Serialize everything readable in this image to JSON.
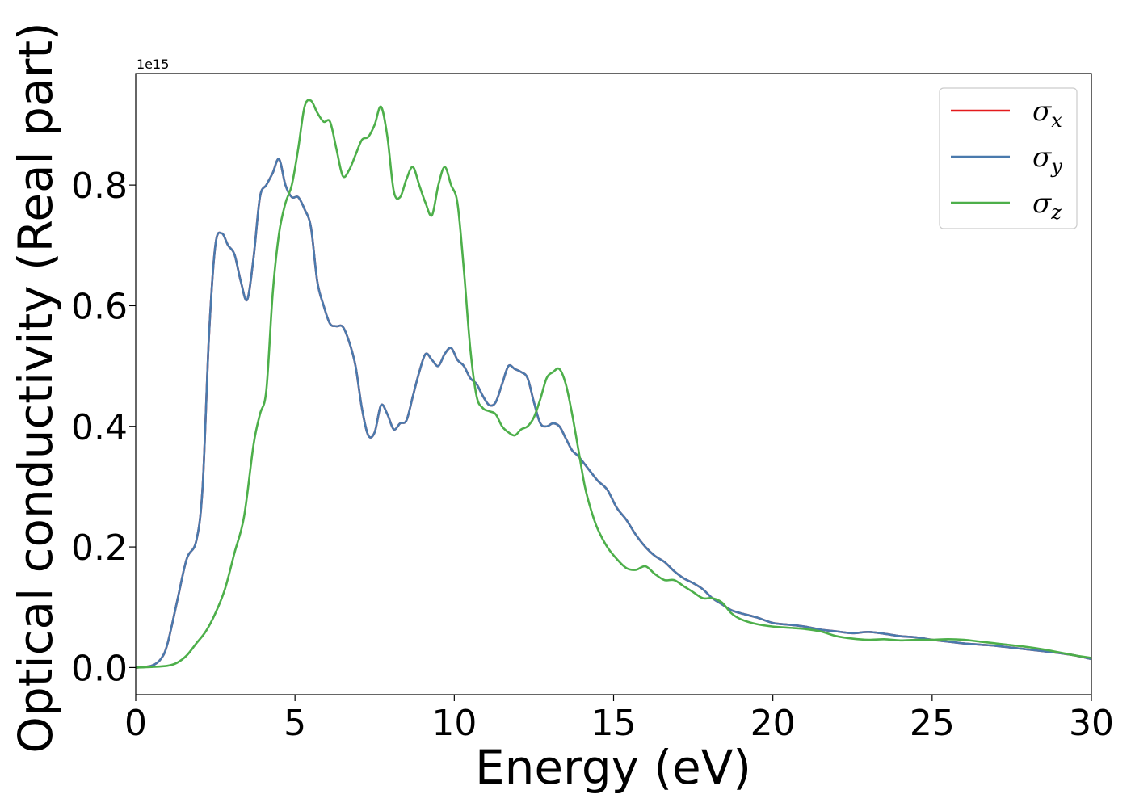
{
  "chart_data": {
    "type": "line",
    "xlabel": "Energy (eV)",
    "ylabel": "Optical conductivity (Real part)",
    "y_offset_label": "1e15",
    "xlim": [
      0,
      30
    ],
    "ylim": [
      -0.045,
      0.985
    ],
    "x_ticks": [
      0,
      5,
      10,
      15,
      20,
      25,
      30
    ],
    "x_tick_labels": [
      "0",
      "5",
      "10",
      "15",
      "20",
      "25",
      "30"
    ],
    "y_ticks": [
      0.0,
      0.2,
      0.4,
      0.6,
      0.8
    ],
    "y_tick_labels": [
      "0.0",
      "0.2",
      "0.4",
      "0.6",
      "0.8"
    ],
    "legend_position": "top-right",
    "grid": false,
    "series": [
      {
        "name": "σx",
        "symbol": "σ",
        "sub": "x",
        "color": "#e41a1c",
        "x": [
          0,
          0.5,
          0.8,
          1.0,
          1.3,
          1.6,
          1.9,
          2.1,
          2.3,
          2.5,
          2.7,
          2.9,
          3.1,
          3.3,
          3.5,
          3.7,
          3.9,
          4.1,
          4.3,
          4.5,
          4.7,
          4.9,
          5.1,
          5.3,
          5.5,
          5.7,
          5.9,
          6.1,
          6.3,
          6.5,
          6.7,
          6.9,
          7.1,
          7.3,
          7.5,
          7.7,
          7.9,
          8.1,
          8.3,
          8.5,
          8.7,
          8.9,
          9.1,
          9.3,
          9.5,
          9.7,
          9.9,
          10.1,
          10.3,
          10.5,
          10.7,
          10.9,
          11.1,
          11.3,
          11.5,
          11.7,
          11.9,
          12.1,
          12.3,
          12.5,
          12.7,
          12.9,
          13.1,
          13.3,
          13.5,
          13.7,
          13.9,
          14.2,
          14.5,
          14.8,
          15.1,
          15.4,
          15.7,
          16.0,
          16.3,
          16.6,
          16.9,
          17.2,
          17.5,
          17.8,
          18.1,
          18.4,
          18.7,
          19.0,
          19.5,
          20.0,
          20.5,
          21.0,
          21.5,
          22.0,
          22.5,
          23.0,
          23.5,
          24.0,
          24.5,
          25.0,
          25.5,
          26.0,
          26.5,
          27.0,
          27.5,
          28.0,
          28.5,
          29.0,
          29.5,
          30.0
        ],
        "values": [
          0.0,
          0.003,
          0.015,
          0.04,
          0.11,
          0.18,
          0.21,
          0.3,
          0.55,
          0.7,
          0.72,
          0.7,
          0.685,
          0.64,
          0.61,
          0.68,
          0.78,
          0.8,
          0.82,
          0.843,
          0.8,
          0.78,
          0.78,
          0.76,
          0.73,
          0.64,
          0.6,
          0.57,
          0.566,
          0.565,
          0.54,
          0.5,
          0.43,
          0.385,
          0.39,
          0.435,
          0.42,
          0.395,
          0.405,
          0.41,
          0.45,
          0.49,
          0.52,
          0.51,
          0.5,
          0.52,
          0.53,
          0.51,
          0.5,
          0.48,
          0.47,
          0.45,
          0.435,
          0.44,
          0.47,
          0.5,
          0.495,
          0.49,
          0.48,
          0.44,
          0.405,
          0.4,
          0.405,
          0.4,
          0.38,
          0.36,
          0.35,
          0.33,
          0.31,
          0.295,
          0.265,
          0.245,
          0.22,
          0.2,
          0.185,
          0.175,
          0.16,
          0.148,
          0.14,
          0.13,
          0.115,
          0.105,
          0.095,
          0.09,
          0.083,
          0.074,
          0.071,
          0.068,
          0.063,
          0.06,
          0.057,
          0.059,
          0.056,
          0.052,
          0.05,
          0.046,
          0.043,
          0.04,
          0.038,
          0.036,
          0.033,
          0.03,
          0.027,
          0.024,
          0.02,
          0.014
        ]
      },
      {
        "name": "σy",
        "symbol": "σ",
        "sub": "y",
        "color": "#4a7aad",
        "x": [
          0,
          0.5,
          0.8,
          1.0,
          1.3,
          1.6,
          1.9,
          2.1,
          2.3,
          2.5,
          2.7,
          2.9,
          3.1,
          3.3,
          3.5,
          3.7,
          3.9,
          4.1,
          4.3,
          4.5,
          4.7,
          4.9,
          5.1,
          5.3,
          5.5,
          5.7,
          5.9,
          6.1,
          6.3,
          6.5,
          6.7,
          6.9,
          7.1,
          7.3,
          7.5,
          7.7,
          7.9,
          8.1,
          8.3,
          8.5,
          8.7,
          8.9,
          9.1,
          9.3,
          9.5,
          9.7,
          9.9,
          10.1,
          10.3,
          10.5,
          10.7,
          10.9,
          11.1,
          11.3,
          11.5,
          11.7,
          11.9,
          12.1,
          12.3,
          12.5,
          12.7,
          12.9,
          13.1,
          13.3,
          13.5,
          13.7,
          13.9,
          14.2,
          14.5,
          14.8,
          15.1,
          15.4,
          15.7,
          16.0,
          16.3,
          16.6,
          16.9,
          17.2,
          17.5,
          17.8,
          18.1,
          18.4,
          18.7,
          19.0,
          19.5,
          20.0,
          20.5,
          21.0,
          21.5,
          22.0,
          22.5,
          23.0,
          23.5,
          24.0,
          24.5,
          25.0,
          25.5,
          26.0,
          26.5,
          27.0,
          27.5,
          28.0,
          28.5,
          29.0,
          29.5,
          30.0
        ],
        "values": [
          0.0,
          0.003,
          0.015,
          0.04,
          0.11,
          0.18,
          0.21,
          0.3,
          0.55,
          0.7,
          0.72,
          0.7,
          0.685,
          0.64,
          0.61,
          0.68,
          0.78,
          0.8,
          0.82,
          0.843,
          0.8,
          0.78,
          0.78,
          0.76,
          0.73,
          0.64,
          0.6,
          0.57,
          0.566,
          0.565,
          0.54,
          0.5,
          0.43,
          0.385,
          0.39,
          0.435,
          0.42,
          0.395,
          0.405,
          0.41,
          0.45,
          0.49,
          0.52,
          0.51,
          0.5,
          0.52,
          0.53,
          0.51,
          0.5,
          0.48,
          0.47,
          0.45,
          0.435,
          0.44,
          0.47,
          0.5,
          0.495,
          0.49,
          0.48,
          0.44,
          0.405,
          0.4,
          0.405,
          0.4,
          0.38,
          0.36,
          0.35,
          0.33,
          0.31,
          0.295,
          0.265,
          0.245,
          0.22,
          0.2,
          0.185,
          0.175,
          0.16,
          0.148,
          0.14,
          0.13,
          0.115,
          0.105,
          0.095,
          0.09,
          0.083,
          0.074,
          0.071,
          0.068,
          0.063,
          0.06,
          0.057,
          0.059,
          0.056,
          0.052,
          0.05,
          0.046,
          0.043,
          0.04,
          0.038,
          0.036,
          0.033,
          0.03,
          0.027,
          0.024,
          0.02,
          0.014
        ]
      },
      {
        "name": "σz",
        "symbol": "σ",
        "sub": "z",
        "color": "#4daf4a",
        "x": [
          0,
          0.5,
          1.0,
          1.3,
          1.6,
          1.9,
          2.2,
          2.5,
          2.8,
          3.1,
          3.4,
          3.7,
          3.9,
          4.1,
          4.3,
          4.5,
          4.7,
          4.9,
          5.1,
          5.3,
          5.5,
          5.7,
          5.9,
          6.1,
          6.3,
          6.5,
          6.7,
          6.9,
          7.1,
          7.3,
          7.5,
          7.7,
          7.9,
          8.1,
          8.3,
          8.5,
          8.7,
          8.9,
          9.1,
          9.3,
          9.5,
          9.7,
          9.9,
          10.1,
          10.3,
          10.5,
          10.7,
          10.9,
          11.1,
          11.3,
          11.5,
          11.7,
          11.9,
          12.1,
          12.3,
          12.5,
          12.7,
          12.9,
          13.1,
          13.3,
          13.5,
          13.7,
          13.9,
          14.1,
          14.3,
          14.5,
          14.8,
          15.1,
          15.4,
          15.7,
          16.0,
          16.3,
          16.6,
          16.9,
          17.2,
          17.5,
          17.8,
          18.1,
          18.4,
          18.7,
          19.0,
          19.5,
          20.0,
          20.5,
          21.0,
          21.5,
          22.0,
          22.5,
          23.0,
          23.5,
          24.0,
          24.5,
          25.0,
          25.5,
          26.0,
          26.5,
          27.0,
          27.5,
          28.0,
          28.5,
          29.0,
          29.5,
          30.0
        ],
        "values": [
          0.0,
          0.001,
          0.003,
          0.008,
          0.02,
          0.04,
          0.06,
          0.09,
          0.13,
          0.19,
          0.25,
          0.37,
          0.42,
          0.46,
          0.62,
          0.72,
          0.77,
          0.8,
          0.86,
          0.93,
          0.94,
          0.92,
          0.905,
          0.905,
          0.86,
          0.815,
          0.825,
          0.85,
          0.875,
          0.88,
          0.9,
          0.93,
          0.88,
          0.79,
          0.78,
          0.81,
          0.83,
          0.8,
          0.77,
          0.75,
          0.8,
          0.83,
          0.8,
          0.77,
          0.66,
          0.53,
          0.45,
          0.43,
          0.425,
          0.42,
          0.4,
          0.39,
          0.385,
          0.395,
          0.4,
          0.415,
          0.445,
          0.48,
          0.49,
          0.495,
          0.47,
          0.42,
          0.36,
          0.3,
          0.26,
          0.23,
          0.2,
          0.18,
          0.165,
          0.162,
          0.168,
          0.155,
          0.145,
          0.145,
          0.135,
          0.125,
          0.115,
          0.115,
          0.108,
          0.09,
          0.08,
          0.072,
          0.068,
          0.066,
          0.064,
          0.06,
          0.052,
          0.048,
          0.046,
          0.047,
          0.045,
          0.046,
          0.046,
          0.047,
          0.046,
          0.043,
          0.04,
          0.037,
          0.034,
          0.03,
          0.025,
          0.02,
          0.016
        ]
      }
    ]
  }
}
